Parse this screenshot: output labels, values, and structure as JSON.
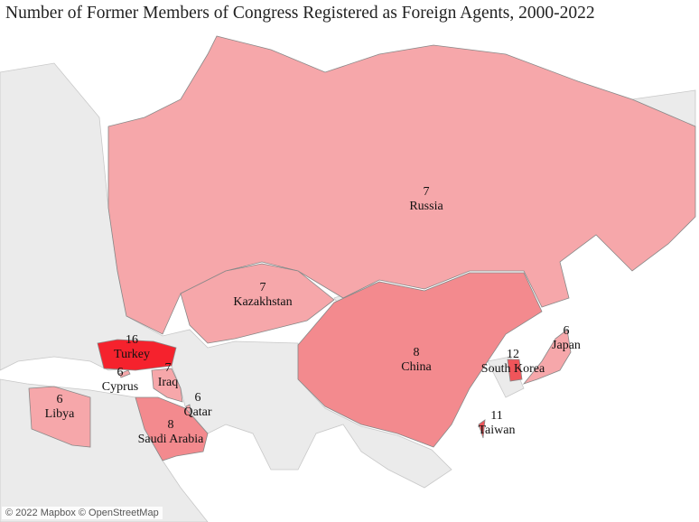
{
  "title": "Number of Former Members of Congress Registered as Foreign Agents, 2000-2022",
  "attribution": "© 2022 Mapbox © OpenStreetMap",
  "colors": {
    "sea": "#ffffff",
    "land": "#ebebeb",
    "border": "#c8c8c8",
    "low": "#f6a7aa",
    "mid": "#f38a8e",
    "high": "#f5222d"
  },
  "countries": [
    {
      "name": "Russia",
      "value": 7
    },
    {
      "name": "Kazakhstan",
      "value": 7
    },
    {
      "name": "China",
      "value": 8
    },
    {
      "name": "Turkey",
      "value": 16
    },
    {
      "name": "Cyprus",
      "value": 6
    },
    {
      "name": "Iraq",
      "value": 7
    },
    {
      "name": "Qatar",
      "value": 6
    },
    {
      "name": "Libya",
      "value": 6
    },
    {
      "name": "Saudi Arabia",
      "value": 8
    },
    {
      "name": "South Korea",
      "value": 12
    },
    {
      "name": "Japan",
      "value": 6
    },
    {
      "name": "Taiwan",
      "value": 11
    }
  ]
}
